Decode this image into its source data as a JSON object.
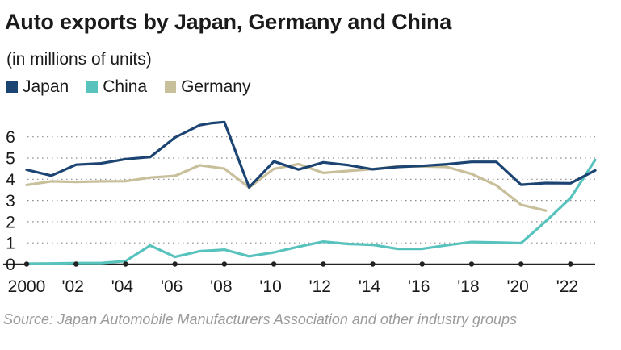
{
  "chart_data": {
    "type": "line",
    "title": "Auto exports by Japan, Germany and China",
    "subtitle": "(in millions of units)",
    "xlim": [
      2000,
      2023
    ],
    "ylim": [
      0,
      7
    ],
    "grid": "horizontal dotted",
    "legend_position": "top-left",
    "x_tick_values": [
      2000,
      2002,
      2004,
      2006,
      2008,
      2010,
      2012,
      2014,
      2016,
      2018,
      2020,
      2022
    ],
    "x_tick_labels": [
      "2000",
      "'02",
      "'04",
      "'06",
      "'08",
      "'10",
      "'12",
      "'14",
      "'16",
      "'18",
      "'20",
      "'22"
    ],
    "y_ticks": [
      0,
      1,
      2,
      3,
      4,
      5,
      6
    ],
    "y_tick_labels": [
      "0",
      "1",
      "2",
      "3",
      "4",
      "5",
      "6"
    ],
    "series": [
      {
        "name": "Japan",
        "color": "#1c4472",
        "x": [
          2000,
          2001,
          2002,
          2003,
          2004,
          2005,
          2006,
          2007,
          2007.5,
          2008,
          2009,
          2010,
          2011,
          2012,
          2013,
          2014,
          2015,
          2016,
          2017,
          2018,
          2019,
          2020,
          2021,
          2022,
          2023
        ],
        "values": [
          4.45,
          4.17,
          4.69,
          4.75,
          4.95,
          5.05,
          5.97,
          6.55,
          6.65,
          6.7,
          3.62,
          4.84,
          4.46,
          4.8,
          4.67,
          4.47,
          4.58,
          4.63,
          4.71,
          4.82,
          4.82,
          3.74,
          3.82,
          3.81,
          4.42
        ]
      },
      {
        "name": "China",
        "color": "#58c2bd",
        "x": [
          2000,
          2001,
          2002,
          2003,
          2004,
          2005,
          2006,
          2007,
          2008,
          2009,
          2010,
          2011,
          2012,
          2013,
          2014,
          2015,
          2016,
          2017,
          2018,
          2019,
          2020,
          2021,
          2022,
          2023
        ],
        "values": [
          0.02,
          0.03,
          0.05,
          0.05,
          0.14,
          0.88,
          0.34,
          0.61,
          0.68,
          0.37,
          0.55,
          0.82,
          1.06,
          0.95,
          0.91,
          0.72,
          0.72,
          0.89,
          1.04,
          1.02,
          0.99,
          2.02,
          3.11,
          4.91
        ]
      },
      {
        "name": "Germany",
        "color": "#c8bf9b",
        "x": [
          2000,
          2001,
          2002,
          2003,
          2004,
          2005,
          2006,
          2007,
          2008,
          2009,
          2010,
          2011,
          2012,
          2013,
          2014,
          2015,
          2016,
          2017,
          2018,
          2019,
          2020,
          2021
        ],
        "values": [
          3.73,
          3.9,
          3.87,
          3.9,
          3.91,
          4.08,
          4.16,
          4.66,
          4.5,
          3.61,
          4.49,
          4.72,
          4.3,
          4.39,
          4.48,
          4.61,
          4.61,
          4.58,
          4.25,
          3.71,
          2.8,
          2.52
        ]
      }
    ]
  },
  "source": "Source: Japan Automobile Manufacturers Association and other industry groups"
}
